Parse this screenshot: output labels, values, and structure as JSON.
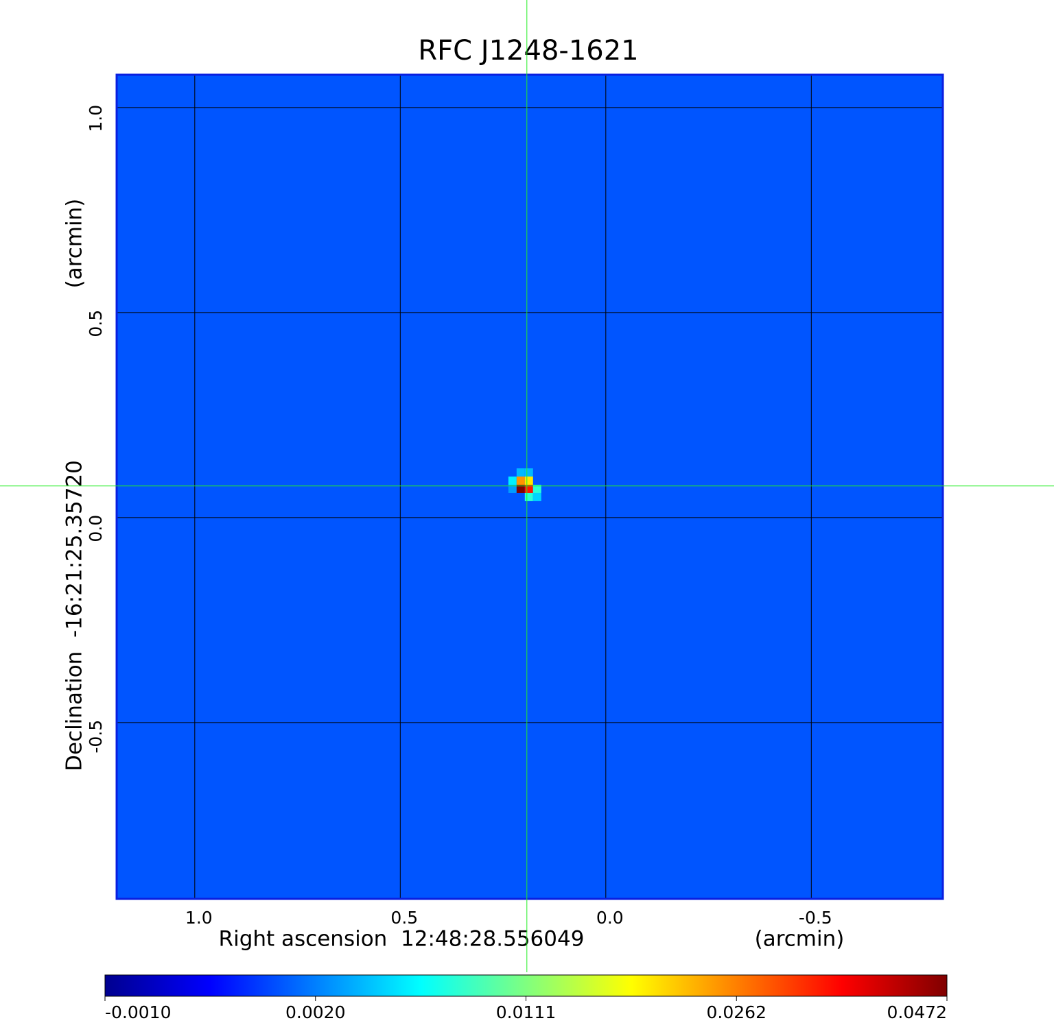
{
  "chart_data": {
    "type": "image",
    "title": "RFC J1248-1621",
    "title_color": "#0a1fd6",
    "xlabel": "Right ascension  12:48:28.556049",
    "xlabel_unit": "(arcmin)",
    "ylabel": "Declination  -16:21:25.35720",
    "ylabel_unit": "(arcmin)",
    "xlim": [
      1.19,
      -0.82
    ],
    "ylim": [
      -0.93,
      1.08
    ],
    "xticks": [
      {
        "value": 1,
        "label": "1.0"
      },
      0.5,
      {
        "value": 0,
        "label": "0.0"
      },
      -0.5
    ],
    "yticks": [
      {
        "value": 1,
        "label": "1.0"
      },
      0.5,
      {
        "value": 0,
        "label": "0.0"
      },
      -0.5
    ],
    "grid": true,
    "frame_color": "#0a1fe0",
    "colormap": "jet",
    "colorbar_ticks": [
      {
        "value": -0.001,
        "label": "-0.0010"
      },
      {
        "value": 0.002,
        "label": "0.0020"
      },
      {
        "value": 0.0111,
        "label": "0.0111"
      },
      {
        "value": 0.0262,
        "label": "0.0262"
      },
      {
        "value": 0.0472,
        "label": "0.0472"
      }
    ],
    "background_level": 0.0015,
    "pixel_size": 0.02,
    "pixels": [
      {
        "ra": 0.227,
        "dec": 0.09,
        "value": 0.006
      },
      {
        "ra": 0.207,
        "dec": 0.11,
        "value": 0.004
      },
      {
        "ra": 0.187,
        "dec": 0.11,
        "value": 0.004
      },
      {
        "ra": 0.207,
        "dec": 0.09,
        "value": 0.025
      },
      {
        "ra": 0.187,
        "dec": 0.09,
        "value": 0.02
      },
      {
        "ra": 0.227,
        "dec": 0.07,
        "value": 0.003
      },
      {
        "ra": 0.207,
        "dec": 0.07,
        "value": 0.047
      },
      {
        "ra": 0.187,
        "dec": 0.07,
        "value": 0.035
      },
      {
        "ra": 0.167,
        "dec": 0.07,
        "value": 0.008
      },
      {
        "ra": 0.187,
        "dec": 0.05,
        "value": 0.008
      },
      {
        "ra": 0.167,
        "dec": 0.05,
        "value": 0.005
      }
    ],
    "crosshair": {
      "ra": 0.192,
      "dec": 0.077
    },
    "crosshair_color": "#22ee22"
  }
}
